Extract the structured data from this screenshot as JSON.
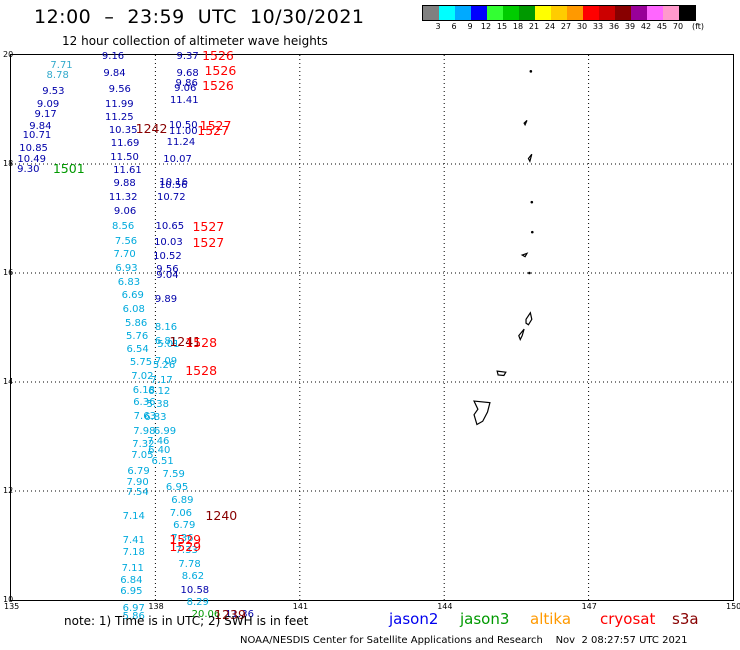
{
  "header": {
    "title": "12:00  –  23:59  UTC  10/30/2021",
    "subtitle": "12 hour collection of altimeter wave heights"
  },
  "color_scale": {
    "colors": [
      "#808080",
      "#00ffff",
      "#00aaff",
      "#0000ff",
      "#33ff33",
      "#00cc00",
      "#009900",
      "#ffff00",
      "#ffcc00",
      "#ff9900",
      "#ff0000",
      "#cc0000",
      "#880000",
      "#990099",
      "#ff66ff",
      "#ff99cc",
      "#000000"
    ],
    "labels": [
      "3",
      "6",
      "9",
      "12",
      "15",
      "18",
      "21",
      "24",
      "27",
      "30",
      "33",
      "36",
      "39",
      "42",
      "45",
      "70",
      "(ft)"
    ]
  },
  "map": {
    "lon_range": [
      135,
      150
    ],
    "lat_range": [
      10,
      20
    ],
    "x_ticks": [
      "135",
      "138",
      "141",
      "144",
      "147",
      "150"
    ],
    "y_ticks": [
      "10",
      "12",
      "14",
      "16",
      "18",
      "20"
    ],
    "land_features": [
      "Guam",
      "Rota",
      "Tinian",
      "Saipan",
      "Northern Marianas islets"
    ]
  },
  "observations": [
    {
      "lon": 136.05,
      "lat": 19.8,
      "text": "7.71",
      "color": "#33aacc"
    },
    {
      "lon": 137.12,
      "lat": 19.97,
      "text": "9.16",
      "color": "#0000aa"
    },
    {
      "lon": 137.7,
      "lat": 19.96,
      "text": "",
      "color": "#0000aa"
    },
    {
      "lon": 135.97,
      "lat": 19.61,
      "text": "8.78",
      "color": "#33aacc"
    },
    {
      "lon": 137.15,
      "lat": 19.65,
      "text": "9.84",
      "color": "#0000aa"
    },
    {
      "lon": 135.88,
      "lat": 19.33,
      "text": "9.53",
      "color": "#0000aa"
    },
    {
      "lon": 137.26,
      "lat": 19.36,
      "text": "9.56",
      "color": "#0000aa"
    },
    {
      "lon": 135.77,
      "lat": 19.09,
      "text": "9.09",
      "color": "#0000aa"
    },
    {
      "lon": 137.25,
      "lat": 19.08,
      "text": "11.99",
      "color": "#0000aa"
    },
    {
      "lon": 135.72,
      "lat": 18.89,
      "text": "9.17",
      "color": "#0000aa"
    },
    {
      "lon": 137.25,
      "lat": 18.84,
      "text": "11.25",
      "color": "#0000aa"
    },
    {
      "lon": 135.61,
      "lat": 18.67,
      "text": "9.84",
      "color": "#0000aa"
    },
    {
      "lon": 137.33,
      "lat": 18.61,
      "text": "10.35",
      "color": "#0000aa"
    },
    {
      "lon": 135.54,
      "lat": 18.51,
      "text": "10.71",
      "color": "#0000aa"
    },
    {
      "lon": 137.37,
      "lat": 18.37,
      "text": "11.69",
      "color": "#0000aa"
    },
    {
      "lon": 135.47,
      "lat": 18.28,
      "text": "10.85",
      "color": "#0000aa"
    },
    {
      "lon": 137.36,
      "lat": 18.11,
      "text": "11.50",
      "color": "#0000aa"
    },
    {
      "lon": 135.43,
      "lat": 18.07,
      "text": "10.49",
      "color": "#0000aa"
    },
    {
      "lon": 137.42,
      "lat": 17.88,
      "text": "11.61",
      "color": "#0000aa"
    },
    {
      "lon": 135.36,
      "lat": 17.89,
      "text": "9.30",
      "color": "#0000aa"
    },
    {
      "lon": 137.36,
      "lat": 17.63,
      "text": "9.88",
      "color": "#0000aa"
    },
    {
      "lon": 137.33,
      "lat": 17.38,
      "text": "11.32",
      "color": "#0000aa"
    },
    {
      "lon": 137.37,
      "lat": 17.12,
      "text": "9.06",
      "color": "#0000aa"
    },
    {
      "lon": 137.33,
      "lat": 16.85,
      "text": "8.56",
      "color": "#00aadd"
    },
    {
      "lon": 137.39,
      "lat": 16.57,
      "text": "7.56",
      "color": "#00aadd"
    },
    {
      "lon": 137.36,
      "lat": 16.33,
      "text": "7.70",
      "color": "#00aadd"
    },
    {
      "lon": 137.4,
      "lat": 16.08,
      "text": "6.93",
      "color": "#00aadd"
    },
    {
      "lon": 137.45,
      "lat": 15.81,
      "text": "6.83",
      "color": "#00aadd"
    },
    {
      "lon": 137.53,
      "lat": 15.58,
      "text": "6.69",
      "color": "#00aadd"
    },
    {
      "lon": 137.55,
      "lat": 15.33,
      "text": "6.08",
      "color": "#00aadd"
    },
    {
      "lon": 137.6,
      "lat": 15.07,
      "text": "5.86",
      "color": "#00aadd"
    },
    {
      "lon": 137.62,
      "lat": 14.82,
      "text": "5.76",
      "color": "#00aadd"
    },
    {
      "lon": 137.63,
      "lat": 14.58,
      "text": "6.54",
      "color": "#00aadd"
    },
    {
      "lon": 137.7,
      "lat": 14.35,
      "text": "5.75",
      "color": "#00aadd"
    },
    {
      "lon": 137.73,
      "lat": 14.1,
      "text": "7.02",
      "color": "#00aadd"
    },
    {
      "lon": 137.76,
      "lat": 13.84,
      "text": "6.18",
      "color": "#00aadd"
    },
    {
      "lon": 137.77,
      "lat": 13.61,
      "text": "6.36",
      "color": "#00aadd"
    },
    {
      "lon": 137.78,
      "lat": 13.35,
      "text": "7.63",
      "color": "#00aadd"
    },
    {
      "lon": 137.77,
      "lat": 13.08,
      "text": "7.98",
      "color": "#00aadd"
    },
    {
      "lon": 137.75,
      "lat": 12.85,
      "text": "7.32",
      "color": "#00aadd"
    },
    {
      "lon": 137.73,
      "lat": 12.64,
      "text": "7.05",
      "color": "#00aadd"
    },
    {
      "lon": 137.65,
      "lat": 12.35,
      "text": "6.79",
      "color": "#00aadd"
    },
    {
      "lon": 137.63,
      "lat": 12.14,
      "text": "7.90",
      "color": "#00aadd"
    },
    {
      "lon": 137.63,
      "lat": 11.96,
      "text": "7.54",
      "color": "#00aadd"
    },
    {
      "lon": 137.55,
      "lat": 11.52,
      "text": "7.14",
      "color": "#00aadd"
    },
    {
      "lon": 137.55,
      "lat": 11.08,
      "text": "7.41",
      "color": "#00aadd"
    },
    {
      "lon": 137.55,
      "lat": 10.86,
      "text": "7.18",
      "color": "#00aadd"
    },
    {
      "lon": 137.53,
      "lat": 10.57,
      "text": "7.11",
      "color": "#00aadd"
    },
    {
      "lon": 137.5,
      "lat": 10.35,
      "text": "6.84",
      "color": "#00aadd"
    },
    {
      "lon": 137.5,
      "lat": 10.14,
      "text": "6.95",
      "color": "#00aadd"
    },
    {
      "lon": 137.55,
      "lat": 9.84,
      "text": "6.97",
      "color": "#00aadd"
    },
    {
      "lon": 137.55,
      "lat": 9.69,
      "text": "5.86",
      "color": "#00aadd"
    },
    {
      "lon": 138.67,
      "lat": 19.97,
      "text": "9.37",
      "color": "#0000aa"
    },
    {
      "lon": 138.67,
      "lat": 19.65,
      "text": "9.68",
      "color": "#0000aa"
    },
    {
      "lon": 138.65,
      "lat": 19.46,
      "text": "9.86",
      "color": "#0000aa"
    },
    {
      "lon": 138.62,
      "lat": 19.38,
      "text": "9.06",
      "color": "#0000aa"
    },
    {
      "lon": 138.6,
      "lat": 19.15,
      "text": "11.41",
      "color": "#0000aa"
    },
    {
      "lon": 138.58,
      "lat": 18.7,
      "text": "10.50",
      "color": "#0000aa"
    },
    {
      "lon": 138.58,
      "lat": 18.58,
      "text": "11.00",
      "color": "#0000aa"
    },
    {
      "lon": 138.53,
      "lat": 18.38,
      "text": "11.24",
      "color": "#0000aa"
    },
    {
      "lon": 138.46,
      "lat": 18.07,
      "text": "10.07",
      "color": "#0000aa"
    },
    {
      "lon": 138.38,
      "lat": 17.66,
      "text": "10.16",
      "color": "#0000aa"
    },
    {
      "lon": 138.37,
      "lat": 17.59,
      "text": "10.56",
      "color": "#0000aa"
    },
    {
      "lon": 138.33,
      "lat": 17.37,
      "text": "10.72",
      "color": "#0000aa"
    },
    {
      "lon": 138.3,
      "lat": 16.84,
      "text": "10.65",
      "color": "#0000aa"
    },
    {
      "lon": 138.27,
      "lat": 16.55,
      "text": "10.03",
      "color": "#0000aa"
    },
    {
      "lon": 138.25,
      "lat": 16.29,
      "text": "10.52",
      "color": "#0000aa"
    },
    {
      "lon": 138.25,
      "lat": 16.05,
      "text": "9.56",
      "color": "#0000aa"
    },
    {
      "lon": 138.25,
      "lat": 15.95,
      "text": "9.04",
      "color": "#0000aa"
    },
    {
      "lon": 138.22,
      "lat": 15.5,
      "text": "9.89",
      "color": "#0000aa"
    },
    {
      "lon": 138.22,
      "lat": 14.99,
      "text": "8.16",
      "color": "#00aadd"
    },
    {
      "lon": 138.22,
      "lat": 14.73,
      "text": "6.81",
      "color": "#00aadd"
    },
    {
      "lon": 138.27,
      "lat": 14.68,
      "text": "5.01",
      "color": "#00aadd"
    },
    {
      "lon": 138.22,
      "lat": 14.36,
      "text": "7.09",
      "color": "#00aadd"
    },
    {
      "lon": 138.18,
      "lat": 14.29,
      "text": "5.26",
      "color": "#00aadd"
    },
    {
      "lon": 138.13,
      "lat": 14.01,
      "text": "7.17",
      "color": "#00aadd"
    },
    {
      "lon": 138.08,
      "lat": 13.82,
      "text": "6.12",
      "color": "#00aadd"
    },
    {
      "lon": 138.05,
      "lat": 13.58,
      "text": "5.38",
      "color": "#00aadd"
    },
    {
      "lon": 138.0,
      "lat": 13.34,
      "text": "6.83",
      "color": "#00aadd"
    },
    {
      "lon": 138.2,
      "lat": 13.08,
      "text": "6.99",
      "color": "#00aadd"
    },
    {
      "lon": 138.06,
      "lat": 12.89,
      "text": "7.46",
      "color": "#00aadd"
    },
    {
      "lon": 138.08,
      "lat": 12.74,
      "text": "6.40",
      "color": "#00aadd"
    },
    {
      "lon": 138.15,
      "lat": 12.54,
      "text": "6.51",
      "color": "#00aadd"
    },
    {
      "lon": 138.38,
      "lat": 12.29,
      "text": "7.59",
      "color": "#00aadd"
    },
    {
      "lon": 138.45,
      "lat": 12.05,
      "text": "6.95",
      "color": "#00aadd"
    },
    {
      "lon": 138.56,
      "lat": 11.81,
      "text": "6.89",
      "color": "#00aadd"
    },
    {
      "lon": 138.53,
      "lat": 11.58,
      "text": "7.06",
      "color": "#00aadd"
    },
    {
      "lon": 138.6,
      "lat": 11.36,
      "text": "6.79",
      "color": "#00aadd"
    },
    {
      "lon": 138.56,
      "lat": 11.12,
      "text": "7.36",
      "color": "#00aadd"
    },
    {
      "lon": 138.65,
      "lat": 10.89,
      "text": "7.33",
      "color": "#00aadd"
    },
    {
      "lon": 138.71,
      "lat": 10.65,
      "text": "7.78",
      "color": "#00aadd"
    },
    {
      "lon": 138.78,
      "lat": 10.42,
      "text": "8.62",
      "color": "#00aadd"
    },
    {
      "lon": 138.82,
      "lat": 10.17,
      "text": "10.58",
      "color": "#0000aa"
    },
    {
      "lon": 138.88,
      "lat": 9.95,
      "text": "8.29",
      "color": "#00aadd"
    },
    {
      "lon": 139.05,
      "lat": 9.73,
      "text": "20.06",
      "color": "#009900"
    },
    {
      "lon": 139.75,
      "lat": 9.73,
      "text": "11.36",
      "color": "#0000aa"
    }
  ],
  "track_times": [
    {
      "lon": 139.3,
      "lat": 19.98,
      "text": "1526",
      "color": "#ff0000"
    },
    {
      "lon": 139.35,
      "lat": 19.7,
      "text": "1526",
      "color": "#ff0000"
    },
    {
      "lon": 139.3,
      "lat": 19.43,
      "text": "1526",
      "color": "#ff0000"
    },
    {
      "lon": 137.92,
      "lat": 18.64,
      "text": "1242",
      "color": "#880000"
    },
    {
      "lon": 139.25,
      "lat": 18.7,
      "text": "1527",
      "color": "#ff0000"
    },
    {
      "lon": 139.2,
      "lat": 18.6,
      "text": "1527",
      "color": "#ff0000"
    },
    {
      "lon": 136.2,
      "lat": 17.91,
      "text": "1501",
      "color": "#009900"
    },
    {
      "lon": 139.1,
      "lat": 16.84,
      "text": "1527",
      "color": "#ff0000"
    },
    {
      "lon": 139.1,
      "lat": 16.55,
      "text": "1527",
      "color": "#ff0000"
    },
    {
      "lon": 138.62,
      "lat": 14.74,
      "text": "1241",
      "color": "#880000"
    },
    {
      "lon": 138.95,
      "lat": 14.72,
      "text": "1528",
      "color": "#ff0000"
    },
    {
      "lon": 138.95,
      "lat": 14.2,
      "text": "1528",
      "color": "#ff0000"
    },
    {
      "lon": 139.37,
      "lat": 11.55,
      "text": "1240",
      "color": "#880000"
    },
    {
      "lon": 138.62,
      "lat": 11.1,
      "text": "1529",
      "color": "#ff0000"
    },
    {
      "lon": 138.62,
      "lat": 10.98,
      "text": "1529",
      "color": "#ff0000"
    },
    {
      "lon": 139.55,
      "lat": 9.73,
      "text": "1239",
      "color": "#880000"
    }
  ],
  "footer": {
    "note": "note:  1) Time is in UTC;  2) SWH is in feet",
    "legend": [
      {
        "name": "jason2",
        "color": "#0000ee"
      },
      {
        "name": "jason3",
        "color": "#009900"
      },
      {
        "name": "altika",
        "color": "#ff9900"
      },
      {
        "name": "cryosat",
        "color": "#ff0000"
      },
      {
        "name": "s3a",
        "color": "#880000"
      }
    ],
    "credit": "NOAA/NESDIS Center for Satellite Applications and Research    Nov  2 08:27:57 UTC 2021"
  }
}
